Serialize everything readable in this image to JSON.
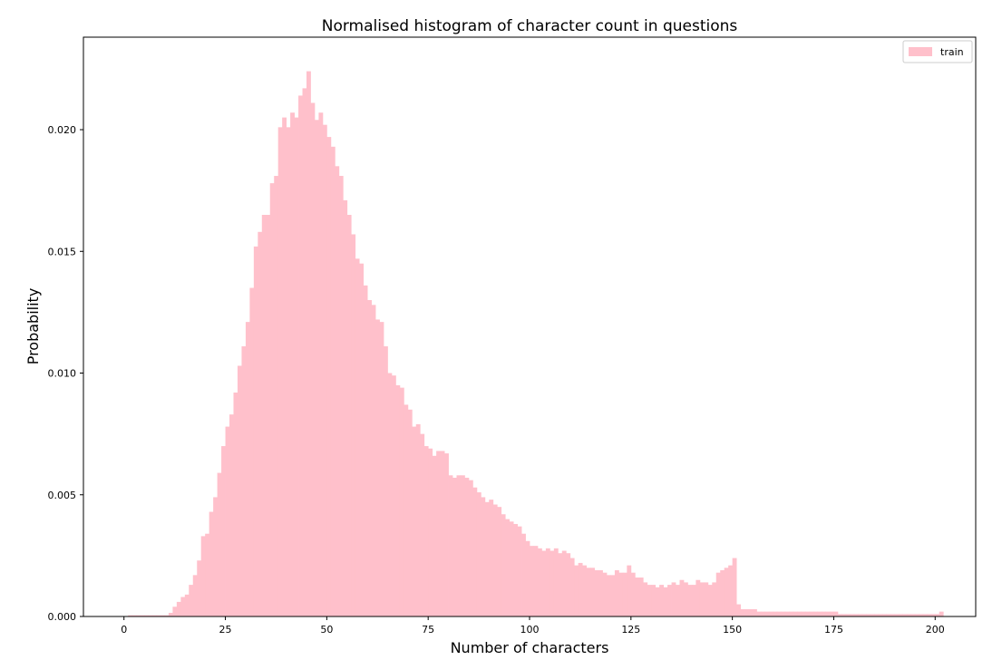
{
  "chart_data": {
    "type": "bar",
    "title": "Normalised histogram of character count in questions",
    "xlabel": "Number of characters",
    "ylabel": "Probability",
    "xlim": [
      -10,
      210
    ],
    "ylim": [
      0,
      0.0238
    ],
    "xticks": [
      0,
      25,
      50,
      75,
      100,
      125,
      150,
      175,
      200
    ],
    "yticks": [
      0.0,
      0.005,
      0.01,
      0.015,
      0.02
    ],
    "ytick_labels": [
      "0.000",
      "0.005",
      "0.010",
      "0.015",
      "0.020"
    ],
    "bar_color": "#ffc0cb",
    "legend_position": "top-right",
    "series": [
      {
        "name": "train",
        "bin_start": 1,
        "bin_width": 1,
        "values": [
          5e-05,
          5e-05,
          5e-05,
          5e-05,
          5e-05,
          5e-05,
          5e-05,
          5e-05,
          5e-05,
          5e-05,
          0.00015,
          0.0004,
          0.0006,
          0.0008,
          0.0009,
          0.0013,
          0.0017,
          0.0023,
          0.0033,
          0.0034,
          0.0043,
          0.0049,
          0.0059,
          0.007,
          0.0078,
          0.0083,
          0.0092,
          0.0103,
          0.0111,
          0.0121,
          0.0135,
          0.0152,
          0.0158,
          0.0165,
          0.0165,
          0.0178,
          0.0181,
          0.0201,
          0.0205,
          0.0201,
          0.0207,
          0.0205,
          0.0214,
          0.0217,
          0.0224,
          0.0211,
          0.0204,
          0.0207,
          0.0202,
          0.0197,
          0.0193,
          0.0185,
          0.0181,
          0.0171,
          0.0165,
          0.0157,
          0.0147,
          0.0145,
          0.0136,
          0.013,
          0.0128,
          0.0122,
          0.0121,
          0.0111,
          0.01,
          0.0099,
          0.0095,
          0.0094,
          0.0087,
          0.0085,
          0.0078,
          0.0079,
          0.0075,
          0.007,
          0.0069,
          0.0066,
          0.0068,
          0.0068,
          0.0067,
          0.0058,
          0.0057,
          0.0058,
          0.0058,
          0.0057,
          0.0056,
          0.0053,
          0.0051,
          0.0049,
          0.0047,
          0.0048,
          0.0046,
          0.0045,
          0.0042,
          0.004,
          0.0039,
          0.0038,
          0.0037,
          0.0034,
          0.0031,
          0.0029,
          0.0029,
          0.0028,
          0.0027,
          0.0028,
          0.0027,
          0.0028,
          0.0026,
          0.0027,
          0.0026,
          0.0024,
          0.0021,
          0.0022,
          0.0021,
          0.002,
          0.002,
          0.0019,
          0.0019,
          0.0018,
          0.0017,
          0.0017,
          0.0019,
          0.0018,
          0.0018,
          0.0021,
          0.0018,
          0.0016,
          0.0016,
          0.0014,
          0.0013,
          0.0013,
          0.0012,
          0.0013,
          0.0012,
          0.0013,
          0.0014,
          0.0013,
          0.0015,
          0.0014,
          0.0013,
          0.0013,
          0.0015,
          0.0014,
          0.0014,
          0.0013,
          0.0014,
          0.0018,
          0.0019,
          0.002,
          0.0021,
          0.0024,
          0.0005,
          0.0003,
          0.0003,
          0.0003,
          0.0003,
          0.0002,
          0.0002,
          0.0002,
          0.0002,
          0.0002,
          0.0002,
          0.0002,
          0.0002,
          0.0002,
          0.0002,
          0.0002,
          0.0002,
          0.0002,
          0.0002,
          0.0002,
          0.0002,
          0.0002,
          0.0002,
          0.0002,
          0.0002,
          0.0001,
          0.0001,
          0.0001,
          0.0001,
          0.0001,
          0.0001,
          0.0001,
          0.0001,
          0.0001,
          0.0001,
          0.0001,
          0.0001,
          0.0001,
          0.0001,
          0.0001,
          0.0001,
          0.0001,
          0.0001,
          0.0001,
          0.0001,
          0.0001,
          0.0001,
          0.0001,
          0.0001,
          0.0001,
          0.0002
        ]
      }
    ]
  }
}
